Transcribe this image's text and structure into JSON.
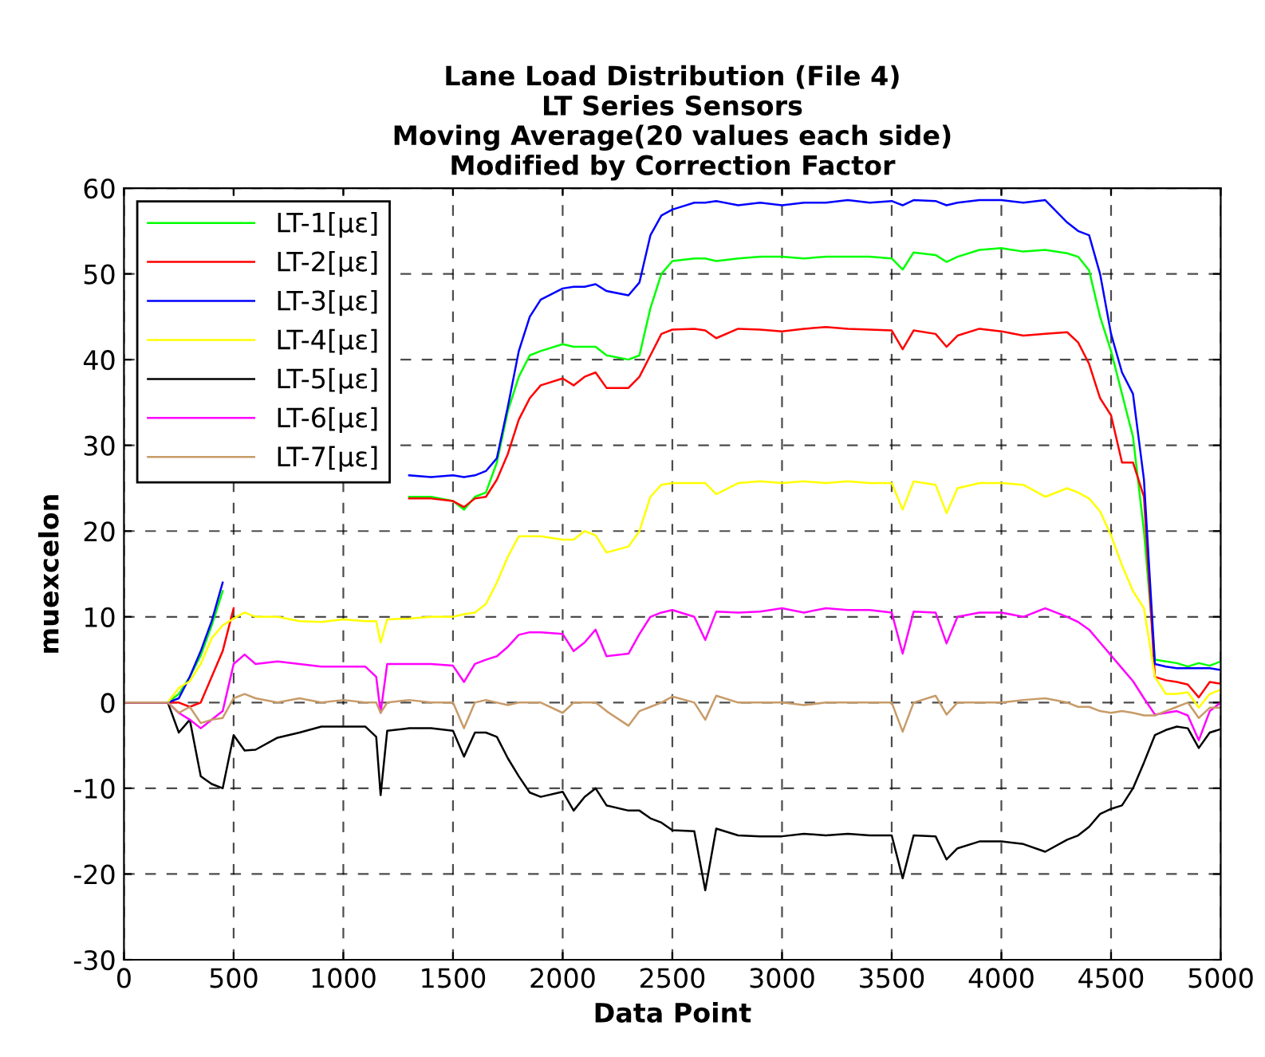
{
  "chart_data": {
    "type": "line",
    "title": "Lane Load Distribution (File 4)\nLT Series Sensors\nMoving Average(20 values each side)\nModified by Correction Factor",
    "xlabel": "Data Point",
    "ylabel": "muexcelon",
    "x": [
      0,
      200,
      250,
      300,
      350,
      400,
      450,
      500,
      550,
      600,
      700,
      800,
      900,
      1000,
      1100,
      1150,
      1170,
      1200,
      1300,
      1400,
      1500,
      1550,
      1600,
      1650,
      1700,
      1750,
      1800,
      1850,
      1900,
      2000,
      2050,
      2100,
      2150,
      2200,
      2300,
      2350,
      2400,
      2450,
      2500,
      2600,
      2650,
      2700,
      2800,
      2900,
      3000,
      3100,
      3200,
      3300,
      3400,
      3500,
      3550,
      3600,
      3700,
      3750,
      3800,
      3900,
      4000,
      4100,
      4200,
      4300,
      4350,
      4400,
      4450,
      4500,
      4550,
      4600,
      4650,
      4700,
      4750,
      4800,
      4850,
      4900,
      4950,
      5000
    ],
    "series": [
      {
        "name": "LT-1[με]",
        "color": "#00ff00",
        "values": [
          0,
          0,
          1,
          3,
          5.5,
          9,
          13,
          null,
          null,
          null,
          null,
          null,
          null,
          null,
          null,
          null,
          null,
          null,
          24,
          24,
          23.5,
          22.5,
          24,
          24.5,
          28,
          34,
          38,
          40.5,
          41,
          41.8,
          41.5,
          41.5,
          41.5,
          40.5,
          40,
          40.5,
          46,
          50,
          51.5,
          51.8,
          51.8,
          51.5,
          51.8,
          52,
          52,
          51.8,
          52,
          52,
          52,
          51.8,
          50.5,
          52.5,
          52.2,
          51.4,
          52,
          52.8,
          53,
          52.6,
          52.8,
          52.4,
          52,
          50.4,
          45,
          41,
          36,
          31,
          20,
          5,
          4.8,
          4.6,
          4.2,
          4.6,
          4.3,
          4.8
        ]
      },
      {
        "name": "LT-2[με]",
        "color": "#ff0000",
        "values": [
          0,
          0,
          0,
          -0.5,
          0,
          3,
          6,
          11,
          null,
          null,
          null,
          null,
          null,
          null,
          null,
          null,
          null,
          null,
          23.8,
          23.8,
          23.5,
          22.8,
          23.8,
          24,
          26,
          29,
          33,
          35.5,
          37,
          37.8,
          37,
          38,
          38.5,
          36.7,
          36.7,
          38,
          40.5,
          43,
          43.5,
          43.6,
          43.4,
          42.5,
          43.6,
          43.5,
          43.3,
          43.6,
          43.8,
          43.6,
          43.5,
          43.4,
          41.2,
          43.4,
          43,
          41.5,
          42.8,
          43.6,
          43.3,
          42.8,
          43,
          43.2,
          42,
          39.5,
          35.5,
          33.5,
          28,
          28,
          24,
          3,
          2.6,
          2.4,
          2.1,
          0.6,
          2.4,
          2.2
        ]
      },
      {
        "name": "LT-3[με]",
        "color": "#0000ff",
        "values": [
          0,
          0,
          0.5,
          3,
          6,
          9.5,
          14,
          null,
          null,
          null,
          null,
          null,
          null,
          null,
          null,
          null,
          null,
          null,
          26.5,
          26.3,
          26.5,
          26.3,
          26.5,
          27,
          28.5,
          34.5,
          41,
          45,
          47,
          48.3,
          48.5,
          48.5,
          48.8,
          48,
          47.5,
          49,
          54.5,
          56.8,
          57.5,
          58.3,
          58.3,
          58.5,
          58,
          58.3,
          58,
          58.3,
          58.3,
          58.6,
          58.3,
          58.5,
          58,
          58.6,
          58.5,
          58,
          58.3,
          58.6,
          58.6,
          58.3,
          58.6,
          56,
          55,
          54.5,
          50,
          43,
          38.5,
          36,
          26,
          4.5,
          4.2,
          4,
          4,
          4,
          4,
          3.8
        ]
      },
      {
        "name": "LT-4[με]",
        "color": "#ffff00",
        "values": [
          0,
          0,
          1.7,
          2.5,
          4.5,
          7.5,
          9,
          9.8,
          10.5,
          10,
          10,
          9.5,
          9.4,
          9.7,
          9.5,
          9.5,
          7,
          9.7,
          9.8,
          10,
          10,
          10.3,
          10.5,
          11.5,
          14,
          17,
          19.4,
          19.4,
          19.4,
          19,
          19,
          20,
          19.5,
          17.5,
          18.2,
          20,
          24,
          25.4,
          25.6,
          25.6,
          25.6,
          24.3,
          25.6,
          25.8,
          25.6,
          25.8,
          25.6,
          25.8,
          25.6,
          25.6,
          22.5,
          25.8,
          25.4,
          22.1,
          25,
          25.6,
          25.6,
          25.4,
          24,
          25,
          24.5,
          23.8,
          22.3,
          19.5,
          16,
          13,
          11,
          3,
          1,
          1,
          1.2,
          -0.6,
          1,
          1.5
        ]
      },
      {
        "name": "LT-5[με]",
        "color": "#000000",
        "values": [
          0,
          0,
          -3.5,
          -2,
          -8.6,
          -9.5,
          -10,
          -3.8,
          -5.6,
          -5.5,
          -4.1,
          -3.5,
          -2.8,
          -2.8,
          -2.8,
          -4,
          -10.8,
          -3.3,
          -3,
          -3,
          -3.3,
          -6.3,
          -3.5,
          -3.5,
          -4,
          -6.5,
          -8.6,
          -10.5,
          -11,
          -10.4,
          -12.6,
          -11,
          -10,
          -12,
          -12.6,
          -12.6,
          -13.5,
          -14,
          -14.9,
          -15,
          -21.9,
          -14.7,
          -15.5,
          -15.6,
          -15.6,
          -15.3,
          -15.5,
          -15.3,
          -15.5,
          -15.5,
          -20.5,
          -15.5,
          -15.6,
          -18.3,
          -17,
          -16.2,
          -16.2,
          -16.5,
          -17.4,
          -16,
          -15.5,
          -14.5,
          -13,
          -12.4,
          -12,
          -10,
          -7,
          -3.8,
          -3.2,
          -2.8,
          -3,
          -5.3,
          -3.5,
          -3.1
        ]
      },
      {
        "name": "LT-6[με]",
        "color": "#ff00ff",
        "values": [
          0,
          0,
          -1.2,
          -2,
          -3,
          -2,
          -1,
          4.5,
          5.6,
          4.5,
          4.8,
          4.5,
          4.2,
          4.2,
          4.2,
          3,
          -1.2,
          4.5,
          4.5,
          4.5,
          4.3,
          2.4,
          4.5,
          5,
          5.4,
          6.5,
          7.9,
          8.2,
          8.2,
          8,
          6,
          7,
          8.5,
          5.4,
          5.7,
          8,
          10,
          10.5,
          10.8,
          10,
          7.3,
          10.6,
          10.5,
          10.6,
          11,
          10.5,
          11,
          10.8,
          10.8,
          10.5,
          5.7,
          10.6,
          10.5,
          6.9,
          10,
          10.5,
          10.5,
          10,
          11,
          10,
          9.4,
          8.5,
          7,
          5.5,
          4,
          2.5,
          0.5,
          -1.4,
          -1.2,
          -1,
          -1.5,
          -4.4,
          -1,
          0
        ]
      },
      {
        "name": "LT-7[με]",
        "color": "#c89b68",
        "values": [
          0,
          0,
          -1.2,
          -0.5,
          -2.4,
          -2,
          -1.8,
          0.5,
          1,
          0.5,
          0,
          0.5,
          0,
          0.3,
          0,
          0,
          -1.2,
          0,
          0.3,
          0,
          0,
          -3,
          0,
          0.3,
          0,
          -0.3,
          0,
          0,
          0,
          -1.2,
          0,
          0,
          0,
          -1,
          -2.7,
          -1,
          -0.5,
          0,
          0.7,
          0,
          -2,
          0.8,
          0,
          0,
          0,
          -0.3,
          0,
          0,
          0,
          0,
          -3.4,
          0,
          0.8,
          -1.4,
          0,
          0,
          0,
          0.3,
          0.5,
          0,
          -0.5,
          -0.5,
          -1,
          -1.2,
          -1,
          -1.2,
          -1.5,
          -1.5,
          -1,
          -0.5,
          0,
          -1.8,
          -0.6,
          -0.6
        ]
      }
    ],
    "xlim": [
      0,
      5000
    ],
    "xticks": [
      0,
      500,
      1000,
      1500,
      2000,
      2500,
      3000,
      3500,
      4000,
      4500,
      5000
    ],
    "ylim": [
      -30,
      60
    ],
    "yticks": [
      -30,
      -20,
      -10,
      0,
      10,
      20,
      30,
      40,
      50,
      60
    ],
    "grid": true,
    "legend": "top left",
    "line_style": "solid",
    "marker": "none"
  }
}
